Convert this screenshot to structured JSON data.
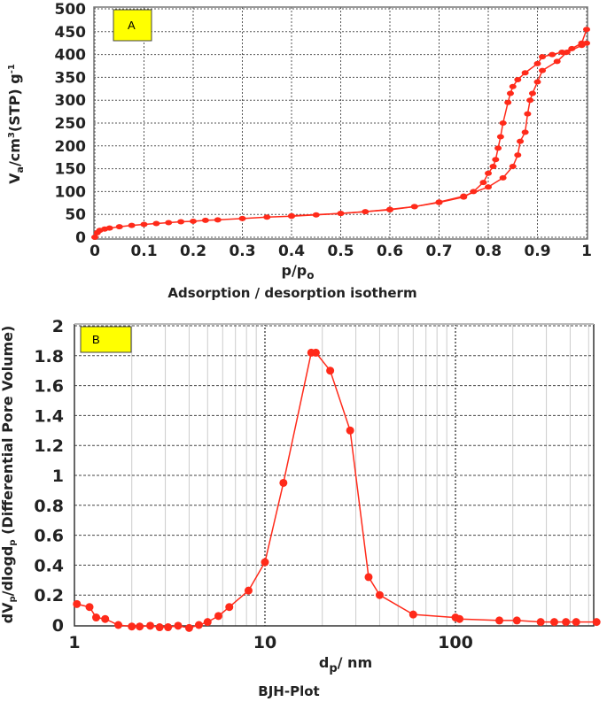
{
  "chart_data": [
    {
      "type": "line",
      "panel_label": "A",
      "title": "Adsorption / desorption isotherm",
      "xlabel": {
        "main": "p/p",
        "sub": "o"
      },
      "ylabel": {
        "a": "V",
        "a_sub": "a",
        "b": "/cm",
        "b_sup": "3",
        "c": "(STP) g",
        "c_sup": "-1"
      },
      "xlim": [
        0,
        1
      ],
      "ylim": [
        0,
        500
      ],
      "xticks": [
        "0",
        "0.1",
        "0.2",
        "0.3",
        "0.4",
        "0.5",
        "0.6",
        "0.7",
        "0.8",
        "0.9",
        "1"
      ],
      "yticks": [
        "0",
        "50",
        "100",
        "150",
        "200",
        "250",
        "300",
        "350",
        "400",
        "450",
        "500"
      ],
      "grid": true,
      "series_color": "#ff2a1a",
      "series": [
        {
          "x": [
            0,
            0.005,
            0.01,
            0.02,
            0.03,
            0.05,
            0.075,
            0.1,
            0.125,
            0.15,
            0.175,
            0.2,
            0.225,
            0.25,
            0.3,
            0.35,
            0.4,
            0.45,
            0.5,
            0.55,
            0.6,
            0.65,
            0.7,
            0.75,
            0.8,
            0.83,
            0.85,
            0.86,
            0.865,
            0.875,
            0.88,
            0.885,
            0.89,
            0.9,
            0.91,
            0.94,
            0.96,
            0.99,
            1
          ],
          "y": [
            0,
            10,
            15,
            18,
            20,
            23,
            26,
            28,
            30,
            32,
            34,
            35,
            37,
            38,
            41,
            44,
            46,
            49,
            52,
            56,
            61,
            67,
            77,
            90,
            110,
            130,
            155,
            180,
            210,
            230,
            270,
            300,
            315,
            340,
            365,
            385,
            405,
            420,
            425
          ]
        },
        {
          "x": [
            1,
            0.99,
            0.97,
            0.95,
            0.93,
            0.91,
            0.9,
            0.875,
            0.86,
            0.85,
            0.845,
            0.84,
            0.83,
            0.825,
            0.82,
            0.815,
            0.81,
            0.8,
            0.79,
            0.77,
            0.75,
            0.7,
            0.65,
            0.6,
            0.5,
            0.4
          ],
          "y": [
            455,
            425,
            413,
            405,
            400,
            395,
            380,
            360,
            345,
            330,
            315,
            295,
            250,
            220,
            195,
            170,
            155,
            140,
            120,
            100,
            88,
            76,
            67,
            60,
            52,
            47
          ]
        }
      ]
    },
    {
      "type": "line",
      "panel_label": "B",
      "title": "BJH-Plot",
      "xlabel": {
        "main": "d",
        "sub": "p",
        "rest": "/ nm"
      },
      "ylabel": {
        "a": "dV",
        "a_sub": "p",
        "b": "/dlogd",
        "b_sub": "p",
        "c": " (Differential Pore Volume)"
      },
      "xscale": "log",
      "xlim": [
        1,
        560
      ],
      "ylim": [
        0,
        2
      ],
      "xticks": [
        "1",
        "10",
        "100"
      ],
      "yticks": [
        "0",
        "0.2",
        "0.4",
        "0.6",
        "0.8",
        "1",
        "1.2",
        "1.4",
        "1.6",
        "1.8",
        "2"
      ],
      "grid": true,
      "series_color": "#ff2a1a",
      "series": [
        {
          "x": [
            1.03,
            1.2,
            1.3,
            1.45,
            1.7,
            2,
            2.2,
            2.5,
            2.8,
            3.1,
            3.5,
            4,
            4.5,
            5,
            5.7,
            6.5,
            8.2,
            10,
            12.5,
            17.5,
            18.5,
            22,
            28,
            35,
            40,
            60,
            100,
            105,
            170,
            210,
            280,
            330,
            380,
            430,
            550
          ],
          "y": [
            0.14,
            0.12,
            0.05,
            0.04,
            0.0,
            -0.01,
            -0.01,
            -0.005,
            -0.015,
            -0.015,
            -0.005,
            -0.02,
            0,
            0.02,
            0.06,
            0.12,
            0.23,
            0.42,
            0.95,
            1.82,
            1.82,
            1.7,
            1.3,
            0.32,
            0.2,
            0.07,
            0.05,
            0.04,
            0.03,
            0.03,
            0.02,
            0.02,
            0.02,
            0.02,
            0.02
          ]
        }
      ]
    }
  ]
}
